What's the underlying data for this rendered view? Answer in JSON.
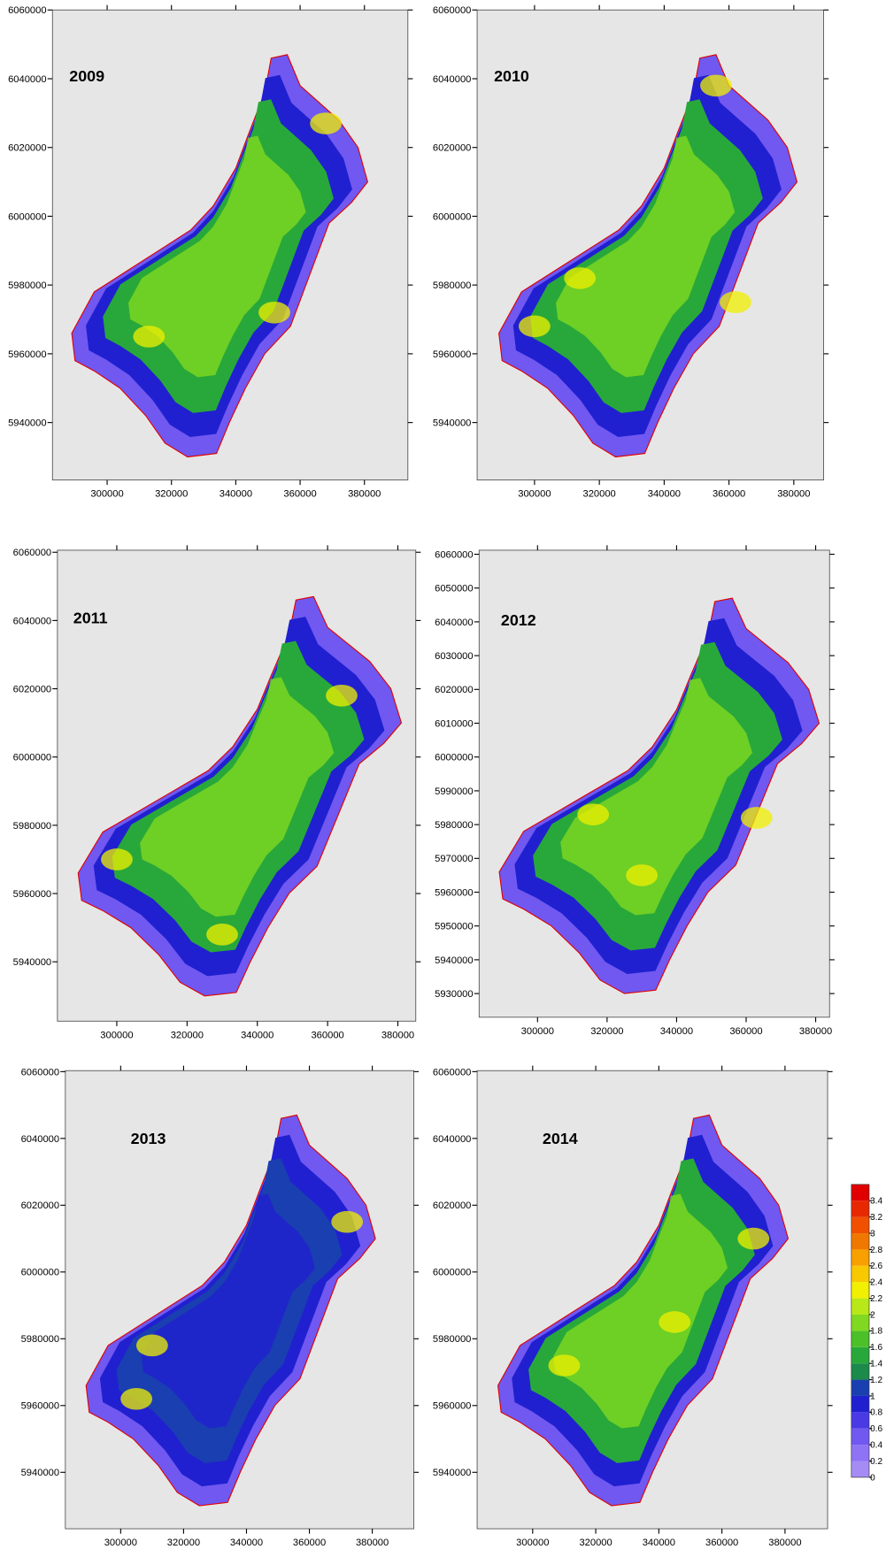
{
  "chart_data": [
    {
      "type": "contour",
      "title": "2009",
      "xlim": [
        283000,
        393500
      ],
      "ylim": [
        5923300,
        6060000
      ],
      "xticks": [
        300000,
        320000,
        340000,
        360000,
        380000
      ],
      "yticks": [
        5940000,
        5960000,
        5980000,
        6000000,
        6020000,
        6040000,
        6060000
      ]
    },
    {
      "type": "contour",
      "title": "2010",
      "xlim": [
        282300,
        389200
      ],
      "ylim": [
        5923300,
        6060000
      ],
      "xticks": [
        300000,
        320000,
        340000,
        360000,
        380000
      ],
      "yticks": [
        5940000,
        5960000,
        5980000,
        6000000,
        6020000,
        6040000,
        6060000
      ]
    },
    {
      "type": "contour",
      "title": "2011",
      "xlim": [
        283100,
        385100
      ],
      "ylim": [
        5922600,
        6060600
      ],
      "xticks": [
        300000,
        320000,
        340000,
        360000,
        380000
      ],
      "yticks": [
        5940000,
        5960000,
        5980000,
        6000000,
        6020000,
        6040000,
        6060000
      ]
    },
    {
      "type": "contour",
      "title": "2012",
      "xlim": [
        283200,
        384000
      ],
      "ylim": [
        5923000,
        6061200
      ],
      "xticks": [
        300000,
        320000,
        340000,
        360000,
        380000
      ],
      "yticks": [
        5930000,
        5940000,
        5950000,
        5960000,
        5970000,
        5980000,
        5990000,
        6000000,
        6010000,
        6020000,
        6030000,
        6040000,
        6050000,
        6060000
      ]
    },
    {
      "type": "contour",
      "title": "2013",
      "xlim": [
        282400,
        393200
      ],
      "ylim": [
        5923100,
        6060300
      ],
      "xticks": [
        300000,
        320000,
        340000,
        360000,
        380000
      ],
      "yticks": [
        5940000,
        5960000,
        5980000,
        6000000,
        6020000,
        6040000,
        6060000
      ]
    },
    {
      "type": "contour",
      "title": "2014",
      "xlim": [
        282400,
        393500
      ],
      "ylim": [
        5923100,
        6060300
      ],
      "xticks": [
        300000,
        320000,
        340000,
        360000,
        380000
      ],
      "yticks": [
        5940000,
        5960000,
        5980000,
        6000000,
        6020000,
        6040000,
        6060000
      ]
    }
  ],
  "colorbar": {
    "zlim": [
      0,
      3.6
    ],
    "ticks": [
      0,
      0.2,
      0.4,
      0.6,
      0.8,
      1,
      1.2,
      1.4,
      1.6,
      1.8,
      2,
      2.2,
      2.4,
      2.6,
      2.8,
      3,
      3.2,
      3.4
    ],
    "colors": [
      "#a58cf5",
      "#8f73f5",
      "#7058f0",
      "#4a3ae6",
      "#2020d0",
      "#1a3fb0",
      "#1b8a4a",
      "#28a83a",
      "#4cc028",
      "#80d820",
      "#b8e818",
      "#f0f000",
      "#f8c800",
      "#f8a000",
      "#f07800",
      "#f05000",
      "#e82800",
      "#e00000"
    ]
  }
}
